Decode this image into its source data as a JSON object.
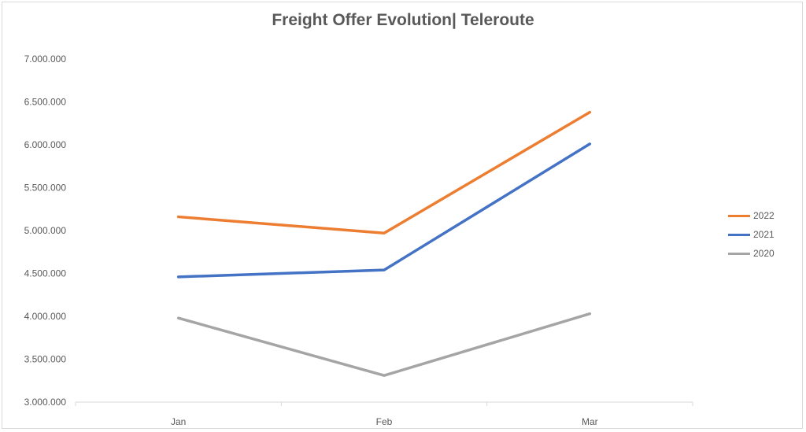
{
  "chart_data": {
    "type": "line",
    "title": "Freight Offer Evolution| Teleroute",
    "xlabel": "",
    "ylabel": "",
    "categories": [
      "Jan",
      "Feb",
      "Mar"
    ],
    "ylim": [
      3000000,
      7000000
    ],
    "yticks": [
      3000000,
      3500000,
      4000000,
      4500000,
      5000000,
      5500000,
      6000000,
      6500000,
      7000000
    ],
    "ytick_labels": [
      "3.000.000",
      "3.500.000",
      "4.000.000",
      "4.500.000",
      "5.000.000",
      "5.500.000",
      "6.000.000",
      "6.500.000",
      "7.000.000"
    ],
    "grid": false,
    "legend": "right",
    "series": [
      {
        "name": "2022",
        "values": [
          5160000,
          4970000,
          6380000
        ],
        "color": "#ED7D31"
      },
      {
        "name": "2021",
        "values": [
          4460000,
          4540000,
          6010000
        ],
        "color": "#4472C4"
      },
      {
        "name": "2020",
        "values": [
          3980000,
          3310000,
          4030000
        ],
        "color": "#A5A5A5"
      }
    ]
  }
}
